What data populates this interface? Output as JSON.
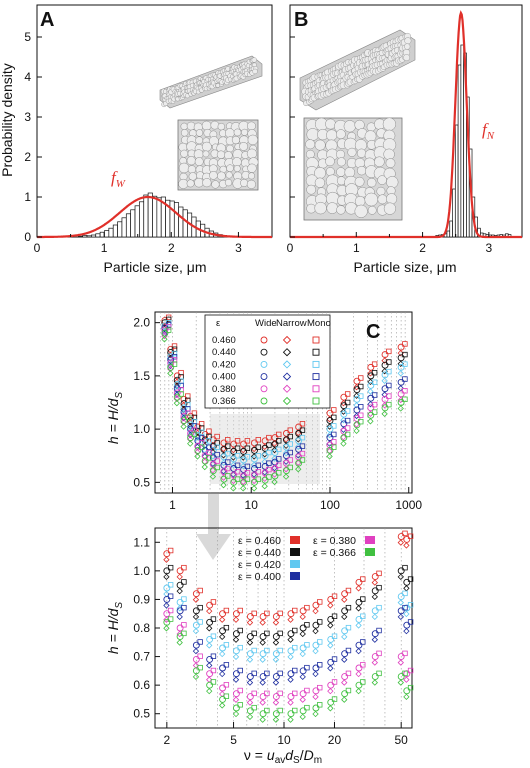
{
  "panels": {
    "A": {
      "label": "A",
      "xlabel": "Particle size, μm",
      "ylabel": "Probability density",
      "curve_label_main": "f",
      "curve_label_sub": "W"
    },
    "B": {
      "label": "B",
      "xlabel": "Particle size, μm",
      "curve_label_main": "f",
      "curve_label_sub": "N"
    },
    "C": {
      "label": "C",
      "ylabel": "h = H/d",
      "ylabel_sub": "S",
      "xlabel_html": "ν = u_av d_S / D_m",
      "legend_header": [
        "ε",
        "Wide",
        "Narrow",
        "Mono"
      ],
      "legend_eps": [
        "0.460",
        "0.440",
        "0.420",
        "0.400",
        "0.380",
        "0.366"
      ],
      "bottom_legend": [
        {
          "label": "ε = 0.460",
          "color": "#e0302a"
        },
        {
          "label": "ε = 0.380",
          "color": "#e040c0"
        },
        {
          "label": "ε = 0.440",
          "color": "#111111"
        },
        {
          "label": "ε = 0.366",
          "color": "#40c040"
        },
        {
          "label": "ε = 0.420",
          "color": "#60c8f0"
        },
        {
          "label": "ε = 0.400",
          "color": "#1f2fa0"
        }
      ]
    }
  },
  "chart_data": [
    {
      "type": "bar",
      "panel": "A",
      "xlim": [
        0,
        3.5
      ],
      "ylim": [
        0,
        5.8
      ],
      "xticks": [
        0,
        1,
        2,
        3
      ],
      "yticks": [
        0,
        1,
        2,
        3,
        4,
        5
      ],
      "curve_mean": 1.65,
      "curve_sd": 0.42,
      "curve_peak": 1.0,
      "bars": [
        0.05,
        0.02,
        0.04,
        0.03,
        0.05,
        0.08,
        0.12,
        0.16,
        0.22,
        0.3,
        0.38,
        0.48,
        0.58,
        0.68,
        0.78,
        0.88,
        1.05,
        1.1,
        1.02,
        0.98,
        1.0,
        0.92,
        0.9,
        0.86,
        0.75,
        0.68,
        0.6,
        0.5,
        0.4,
        0.32,
        0.22,
        0.15,
        0.1,
        0.06,
        0.04
      ],
      "bar_start": 0.55,
      "bar_width": 0.065
    },
    {
      "type": "bar",
      "panel": "B",
      "xlim": [
        0,
        3.5
      ],
      "ylim": [
        0,
        5.8
      ],
      "xticks": [
        0,
        1,
        2,
        3
      ],
      "curve_mean": 2.58,
      "curve_sd": 0.085,
      "curve_peak": 5.6,
      "bars": [
        0.04,
        0.05,
        0.06,
        0.08,
        0.15,
        0.4,
        1.2,
        2.8,
        4.3,
        4.8,
        4.6,
        3.5,
        2.2,
        1.0,
        0.5,
        0.22,
        0.1,
        0.08,
        0.06,
        0.05,
        0.05,
        0.04,
        0.05,
        0.06,
        0.05,
        0.08,
        0.06
      ],
      "bar_start": 2.2,
      "bar_width": 0.042
    },
    {
      "type": "scatter",
      "panel": "C-top",
      "xscale": "log",
      "xlim": [
        0.6,
        1100
      ],
      "ylim": [
        0.4,
        2.1
      ],
      "xticks": [
        1,
        10,
        100,
        1000
      ],
      "xtick_labels": [
        "1",
        "10",
        "100",
        "1000"
      ],
      "yticks": [
        0.5,
        1.0,
        1.5,
        2.0
      ],
      "ytick_labels": [
        "0.5",
        "1.0",
        "1.5",
        "2.0"
      ],
      "series": [
        {
          "color": "#e0302a",
          "h": [
            2.02,
            1.75,
            1.5,
            1.28,
            1.12,
            1.02,
            0.95,
            0.9,
            0.87,
            0.86,
            0.86,
            0.87,
            0.89,
            0.92,
            0.96,
            1.02,
            1.15,
            1.3,
            1.45,
            1.58,
            1.7,
            1.77
          ]
        },
        {
          "color": "#111111",
          "h": [
            2.0,
            1.72,
            1.46,
            1.24,
            1.08,
            0.98,
            0.9,
            0.84,
            0.81,
            0.79,
            0.79,
            0.8,
            0.82,
            0.86,
            0.9,
            0.96,
            1.08,
            1.22,
            1.37,
            1.5,
            1.6,
            1.67
          ]
        },
        {
          "color": "#60c8f0",
          "h": [
            1.97,
            1.68,
            1.42,
            1.2,
            1.04,
            0.94,
            0.86,
            0.8,
            0.74,
            0.72,
            0.71,
            0.72,
            0.75,
            0.78,
            0.83,
            0.89,
            1.0,
            1.14,
            1.28,
            1.41,
            1.51,
            1.58
          ]
        },
        {
          "color": "#1f2fa0",
          "h": [
            1.95,
            1.65,
            1.38,
            1.16,
            1.0,
            0.89,
            0.8,
            0.73,
            0.66,
            0.63,
            0.62,
            0.63,
            0.65,
            0.69,
            0.75,
            0.81,
            0.92,
            1.05,
            1.18,
            1.29,
            1.38,
            1.44
          ]
        },
        {
          "color": "#e040c0",
          "h": [
            1.93,
            1.62,
            1.34,
            1.12,
            0.96,
            0.84,
            0.75,
            0.67,
            0.6,
            0.57,
            0.56,
            0.57,
            0.59,
            0.63,
            0.68,
            0.74,
            0.85,
            0.98,
            1.1,
            1.2,
            1.28,
            1.33
          ]
        },
        {
          "color": "#40c040",
          "h": [
            1.9,
            1.58,
            1.3,
            1.08,
            0.92,
            0.8,
            0.7,
            0.61,
            0.53,
            0.5,
            0.5,
            0.5,
            0.52,
            0.56,
            0.61,
            0.68,
            0.8,
            0.92,
            1.04,
            1.13,
            1.2,
            1.25
          ]
        }
      ],
      "x": [
        0.8,
        0.95,
        1.15,
        1.4,
        1.7,
        2.1,
        2.6,
        3.3,
        4.5,
        6,
        8,
        11,
        15,
        20,
        28,
        40,
        100,
        150,
        220,
        330,
        500,
        800
      ]
    },
    {
      "type": "scatter",
      "panel": "C-bottom",
      "xscale": "log",
      "xlim": [
        1.7,
        58
      ],
      "ylim": [
        0.45,
        1.15
      ],
      "xticks": [
        2,
        5,
        10,
        20,
        50
      ],
      "xtick_labels": [
        "2",
        "5",
        "10",
        "20",
        "50"
      ],
      "yticks": [
        0.5,
        0.6,
        0.7,
        0.8,
        0.9,
        1.0,
        1.1
      ],
      "ytick_labels": [
        "0.5",
        "0.6",
        "0.7",
        "0.8",
        "0.9",
        "1.0",
        "1.1"
      ],
      "x": [
        2,
        2.4,
        3,
        3.6,
        4.3,
        5.2,
        6.3,
        7.5,
        9,
        11,
        13,
        15.5,
        19,
        23,
        28,
        35,
        50,
        54
      ],
      "series": [
        {
          "color": "#e0302a",
          "h": [
            1.06,
            1.0,
            0.92,
            0.88,
            0.85,
            0.85,
            0.84,
            0.84,
            0.84,
            0.85,
            0.86,
            0.88,
            0.9,
            0.92,
            0.96,
            0.98,
            1.12,
            1.11
          ]
        },
        {
          "color": "#111111",
          "h": [
            1.0,
            0.95,
            0.86,
            0.82,
            0.79,
            0.78,
            0.77,
            0.77,
            0.77,
            0.78,
            0.8,
            0.81,
            0.83,
            0.86,
            0.89,
            0.93,
            1.0,
            0.96
          ]
        },
        {
          "color": "#60c8f0",
          "h": [
            0.94,
            0.89,
            0.81,
            0.76,
            0.73,
            0.72,
            0.71,
            0.71,
            0.71,
            0.72,
            0.73,
            0.74,
            0.76,
            0.79,
            0.83,
            0.86,
            0.91,
            0.87
          ]
        },
        {
          "color": "#1f2fa0",
          "h": [
            0.9,
            0.86,
            0.74,
            0.69,
            0.66,
            0.64,
            0.63,
            0.63,
            0.63,
            0.64,
            0.65,
            0.66,
            0.68,
            0.71,
            0.74,
            0.78,
            0.86,
            0.81
          ]
        },
        {
          "color": "#e040c0",
          "h": [
            0.85,
            0.8,
            0.69,
            0.64,
            0.59,
            0.57,
            0.56,
            0.56,
            0.56,
            0.56,
            0.57,
            0.58,
            0.6,
            0.63,
            0.66,
            0.7,
            0.7,
            0.64
          ]
        },
        {
          "color": "#40c040",
          "h": [
            0.82,
            0.77,
            0.65,
            0.6,
            0.55,
            0.52,
            0.51,
            0.5,
            0.5,
            0.5,
            0.51,
            0.52,
            0.54,
            0.57,
            0.6,
            0.63,
            0.63,
            0.58
          ]
        }
      ]
    }
  ]
}
